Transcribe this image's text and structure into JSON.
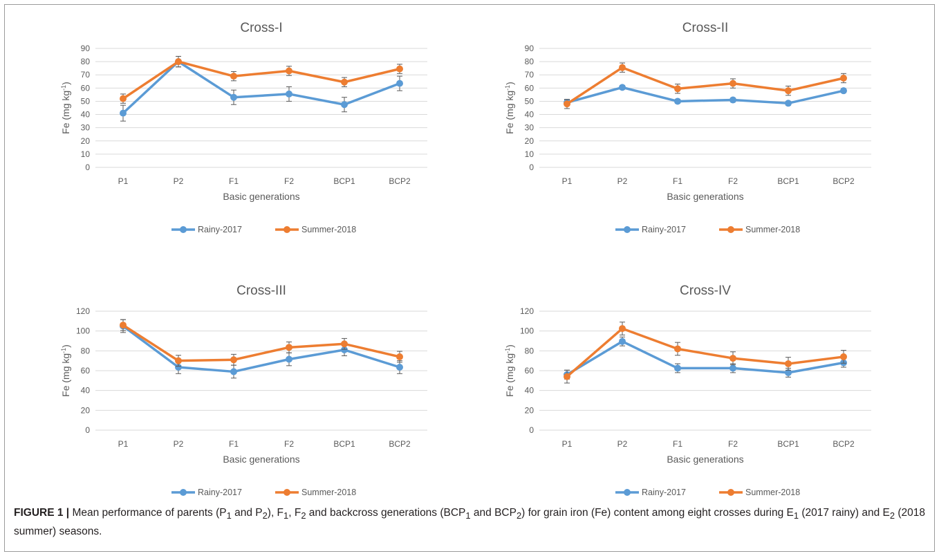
{
  "colors": {
    "rainy": "#5b9bd5",
    "summer": "#ed7d31",
    "grid": "#d9d9d9",
    "text": "#595959",
    "errorbar": "#595959"
  },
  "chart_data": [
    {
      "type": "line",
      "title": "Cross-I",
      "xlabel": "Basic generations",
      "ylabel": "Fe (mg kg-1)",
      "categories": [
        "P1",
        "P2",
        "F1",
        "F2",
        "BCP1",
        "BCP2"
      ],
      "ylim": [
        0,
        90
      ],
      "yticks": [
        "0",
        "10",
        "20",
        "30",
        "40",
        "50",
        "60",
        "70",
        "80",
        "90"
      ],
      "series": [
        {
          "name": "Rainy-2017",
          "values": [
            41,
            80,
            53,
            55.5,
            47.5,
            63.5
          ],
          "err": [
            6,
            4,
            5.5,
            5.5,
            5.5,
            5.5
          ]
        },
        {
          "name": "Summer-2018",
          "values": [
            52,
            80,
            69,
            73,
            64.5,
            74.5
          ],
          "err": [
            3.5,
            4,
            3.5,
            3.5,
            3.5,
            3.5
          ]
        }
      ],
      "legend": "bottom"
    },
    {
      "type": "line",
      "title": "Cross-II",
      "xlabel": "Basic generations",
      "ylabel": "Fe (mg kg-1)",
      "categories": [
        "P1",
        "P2",
        "F1",
        "F2",
        "BCP1",
        "BCP2"
      ],
      "ylim": [
        0,
        90
      ],
      "yticks": [
        "0",
        "10",
        "20",
        "30",
        "40",
        "50",
        "60",
        "70",
        "80",
        "90"
      ],
      "series": [
        {
          "name": "Rainy-2017",
          "values": [
            49,
            60.5,
            50,
            51,
            48.5,
            58
          ],
          "err": [
            2,
            1.5,
            1.5,
            1.5,
            1.5,
            1.5
          ]
        },
        {
          "name": "Summer-2018",
          "values": [
            48,
            75.5,
            59.5,
            63.5,
            58,
            67.5
          ],
          "err": [
            3.5,
            3.5,
            3.5,
            3.5,
            3.5,
            3.5
          ]
        }
      ],
      "legend": "bottom"
    },
    {
      "type": "line",
      "title": "Cross-III",
      "xlabel": "Basic generations",
      "ylabel": "Fe (mg kg-1)",
      "categories": [
        "P1",
        "P2",
        "F1",
        "F2",
        "BCP1",
        "BCP2"
      ],
      "ylim": [
        0,
        120
      ],
      "yticks": [
        "0",
        "20",
        "40",
        "60",
        "80",
        "100",
        "120"
      ],
      "series": [
        {
          "name": "Rainy-2017",
          "values": [
            105,
            63.5,
            59,
            71.5,
            81,
            63.5
          ],
          "err": [
            6.5,
            6.5,
            6.5,
            6.5,
            6,
            6.5
          ]
        },
        {
          "name": "Summer-2018",
          "values": [
            106,
            70,
            71,
            83.5,
            87,
            74
          ],
          "err": [
            5.5,
            5.5,
            5.5,
            5.5,
            5.5,
            5.5
          ]
        }
      ],
      "legend": "bottom"
    },
    {
      "type": "line",
      "title": "Cross-IV",
      "xlabel": "Basic generations",
      "ylabel": "Fe (mg kg-1)",
      "categories": [
        "P1",
        "P2",
        "F1",
        "F2",
        "BCP1",
        "BCP2"
      ],
      "ylim": [
        0,
        120
      ],
      "yticks": [
        "0",
        "20",
        "40",
        "60",
        "80",
        "100",
        "120"
      ],
      "series": [
        {
          "name": "Rainy-2017",
          "values": [
            56,
            89.5,
            62.5,
            62.5,
            58,
            68
          ],
          "err": [
            4.5,
            4.5,
            4.5,
            4.5,
            4.5,
            4.5
          ]
        },
        {
          "name": "Summer-2018",
          "values": [
            54,
            102.5,
            82,
            72.5,
            67,
            74
          ],
          "err": [
            6.5,
            6.5,
            6.5,
            6.5,
            6.5,
            6.5
          ]
        }
      ],
      "legend": "bottom"
    }
  ],
  "caption": {
    "label": "FIGURE 1 |",
    "text": "Mean performance of parents (P1 and P2), F1, F2 and backcross generations (BCP1 and BCP2) for grain iron (Fe) content among eight crosses during E1 (2017 rainy) and E2 (2018 summer) seasons."
  }
}
